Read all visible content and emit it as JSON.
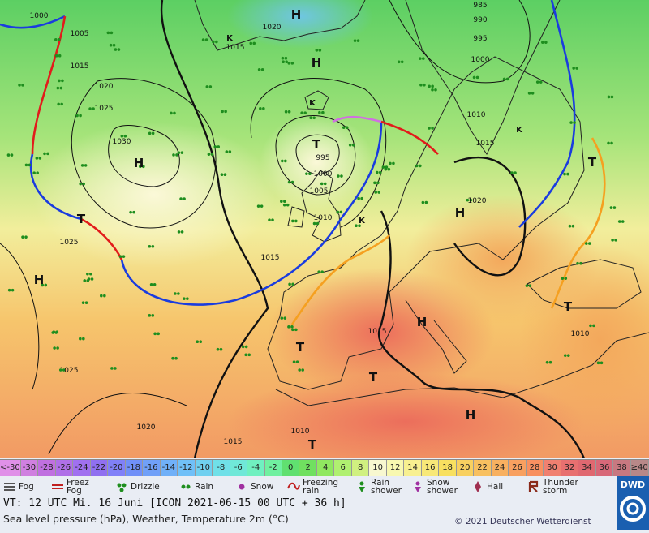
{
  "map": {
    "isobars": [
      1000,
      1005,
      1015,
      1020,
      1025,
      1030,
      1020,
      1015,
      995,
      1000,
      1005,
      1010,
      1015,
      1025,
      1025,
      1020,
      1015,
      1010,
      1015,
      1015,
      1020,
      1010,
      985,
      990,
      995,
      1000,
      1010
    ],
    "centers": [
      "H",
      "H",
      "H",
      "H",
      "H",
      "H",
      "T",
      "T",
      "T",
      "T",
      "T",
      "T",
      "T",
      "H",
      "K",
      "K",
      "K",
      "K"
    ]
  },
  "legend": {
    "scale": [
      "<-30",
      -30,
      -28,
      -26,
      -24,
      -22,
      -20,
      -18,
      -16,
      -14,
      -12,
      -10,
      -8,
      -6,
      -4,
      -2,
      0,
      2,
      4,
      6,
      8,
      10,
      12,
      14,
      16,
      18,
      20,
      22,
      24,
      26,
      28,
      30,
      32,
      34,
      36,
      38,
      "≥40"
    ],
    "scale_colors": [
      "#e090e8",
      "#d080e0",
      "#c070e0",
      "#b070e8",
      "#a070f0",
      "#9070f0",
      "#8080f8",
      "#7090f8",
      "#70a0f8",
      "#70b0f8",
      "#70c0f8",
      "#70d0f0",
      "#70e0e8",
      "#70e8d8",
      "#70f0c0",
      "#70f0a0",
      "#60e070",
      "#70e060",
      "#90e860",
      "#b0f070",
      "#d0f080",
      "#f8f8d0",
      "#f8f8b0",
      "#f8f090",
      "#f8e878",
      "#f8e060",
      "#f8d060",
      "#f8c060",
      "#f8b060",
      "#f8a060",
      "#f89060",
      "#f08070",
      "#e87070",
      "#e06870",
      "#d86878",
      "#c87880",
      "#b88888"
    ],
    "weather": [
      "Fog",
      "Freez\nFog",
      "Drizzle",
      "Rain",
      "Snow",
      "Freezing\nrain",
      "Rain\nshower",
      "Snow\nshower",
      "Hail",
      "Thunder\nstorm"
    ]
  },
  "footer": {
    "valid_time": "VT: 12 UTC Mi.  16 Juni [ICON 2021-06-15  00 UTC + 36 h]",
    "description": "Sea level pressure (hPa), Weather, Temperature 2m (°C)",
    "copyright": "© 2021 Deutscher Wetterdienst",
    "logo": "DWD"
  }
}
